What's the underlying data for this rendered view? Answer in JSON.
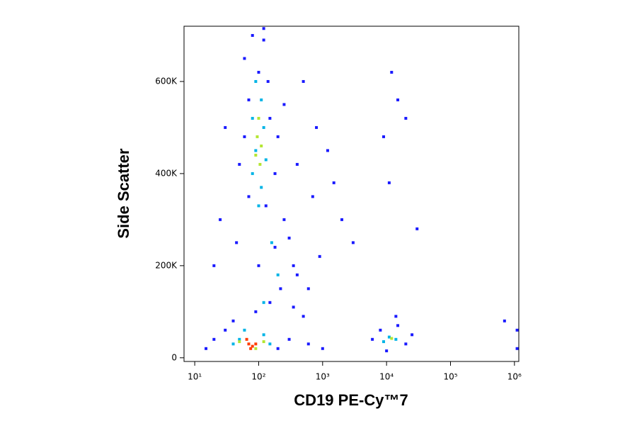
{
  "chart_data": {
    "type": "scatter",
    "x_label": "CD19 PE-Cy™7",
    "y_label": "Side Scatter",
    "x_log": true,
    "xlim": [
      6.8,
      1170000
    ],
    "xticks": [
      {
        "value": 10,
        "label": "10¹"
      },
      {
        "value": 100,
        "label": "10²"
      },
      {
        "value": 1000,
        "label": "10³"
      },
      {
        "value": 10000,
        "label": "10⁴"
      },
      {
        "value": 100000,
        "label": "10⁵"
      },
      {
        "value": 1000000,
        "label": "10⁶"
      }
    ],
    "ylim": [
      -8000,
      720000
    ],
    "yticks": [
      0,
      {
        "value": 200000,
        "label": "200K"
      },
      {
        "value": 400000,
        "label": "400K"
      },
      {
        "value": 600000,
        "label": "600K"
      }
    ],
    "series": [
      {
        "color": "#1a1aff",
        "x": [
          60,
          80,
          120,
          100,
          140,
          70,
          150,
          200,
          60,
          50,
          180,
          70,
          130,
          250,
          300,
          180,
          100,
          400,
          220,
          150,
          350,
          500,
          90,
          40,
          30,
          20,
          15,
          200,
          300,
          600,
          1000,
          8000,
          15000,
          20000,
          25000,
          6000,
          10000,
          700,
          1200,
          1500,
          2000,
          800,
          500,
          3000,
          12000,
          15000,
          9000,
          20000,
          30000,
          11000,
          14000,
          25,
          30,
          20,
          600,
          900,
          400,
          250,
          120,
          1100000,
          1100000,
          700000,
          45,
          350
        ],
        "values": [
          650000,
          700000,
          690000,
          620000,
          600000,
          560000,
          520000,
          480000,
          480000,
          420000,
          400000,
          350000,
          330000,
          300000,
          260000,
          240000,
          200000,
          180000,
          150000,
          120000,
          110000,
          90000,
          100000,
          80000,
          60000,
          40000,
          20000,
          20000,
          40000,
          30000,
          20000,
          60000,
          70000,
          30000,
          50000,
          40000,
          15000,
          350000,
          450000,
          380000,
          300000,
          500000,
          600000,
          250000,
          620000,
          560000,
          480000,
          520000,
          280000,
          380000,
          90000,
          300000,
          500000,
          200000,
          150000,
          220000,
          420000,
          550000,
          715000,
          60000,
          20000,
          80000,
          250000,
          200000
        ]
      },
      {
        "color": "#00b4e6",
        "x": [
          90,
          110,
          80,
          120,
          90,
          130,
          80,
          110,
          100,
          60,
          50,
          120,
          150,
          40,
          11000,
          14000,
          9000,
          160,
          200,
          120
        ],
        "values": [
          600000,
          560000,
          520000,
          500000,
          450000,
          430000,
          400000,
          370000,
          330000,
          60000,
          40000,
          50000,
          30000,
          30000,
          45000,
          40000,
          35000,
          250000,
          180000,
          120000
        ]
      },
      {
        "color": "#b4e632",
        "x": [
          100,
          95,
          110,
          90,
          105,
          50,
          90,
          120,
          12000
        ],
        "values": [
          520000,
          480000,
          460000,
          440000,
          420000,
          35000,
          20000,
          35000,
          42000
        ]
      },
      {
        "color": "#ff3c00",
        "x": [
          70,
          80,
          65,
          75,
          90
        ],
        "values": [
          30000,
          25000,
          40000,
          20000,
          30000
        ]
      }
    ]
  }
}
